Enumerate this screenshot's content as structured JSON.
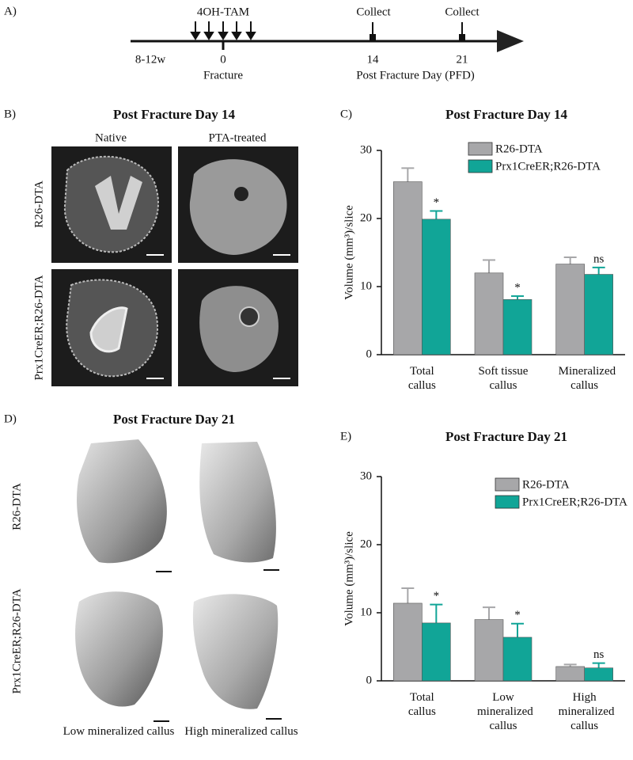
{
  "timeline": {
    "panel": "A)",
    "start": "8-12w",
    "treatment": "4OH-TAM",
    "day0": "0",
    "day0_label": "Fracture",
    "collect_1": "Collect",
    "day14": "14",
    "collect_2": "Collect",
    "day21": "21",
    "axis_label": "Post Fracture Day (PFD)"
  },
  "panel_b": {
    "panel": "B)",
    "title": "Post Fracture Day 14",
    "columns": [
      "Native",
      "PTA-treated"
    ],
    "rows": [
      "R26-DTA",
      "Prx1CreER;R26-DTA"
    ]
  },
  "panel_d": {
    "panel": "D)",
    "title": "Post Fracture Day 21",
    "rows": [
      "R26-DTA",
      "Prx1CreER;R26-DTA"
    ],
    "columns": [
      "Low mineralized callus",
      "High mineralized callus"
    ]
  },
  "chart_data": [
    {
      "type": "bar",
      "panel": "C)",
      "title": "Post Fracture Day 14",
      "ylabel": "Volume (mm³)/slice",
      "categories": [
        "Total callus",
        "Soft tissue callus",
        "Mineralized callus"
      ],
      "series": [
        {
          "name": "R26-DTA",
          "color": "#a7a7a9",
          "values": [
            25.4,
            12.0,
            13.3
          ],
          "errors": [
            2.0,
            1.9,
            1.0
          ]
        },
        {
          "name": "Prx1CreER;R26-DTA",
          "color": "#11a597",
          "values": [
            19.9,
            8.1,
            11.8
          ],
          "errors": [
            1.2,
            0.5,
            1.0
          ]
        }
      ],
      "annotations": [
        "*",
        "*",
        "ns"
      ],
      "ylim": [
        0,
        30
      ],
      "yticks": [
        0,
        10,
        20,
        30
      ]
    },
    {
      "type": "bar",
      "panel": "E)",
      "title": "Post Fracture Day 21",
      "ylabel": "Volume (mm³)/slice",
      "categories": [
        "Total callus",
        "Low mineralized callus",
        "High mineralized callus"
      ],
      "series": [
        {
          "name": "R26-DTA",
          "color": "#a7a7a9",
          "values": [
            11.4,
            9.0,
            2.1
          ],
          "errors": [
            2.2,
            1.8,
            0.3
          ]
        },
        {
          "name": "Prx1CreER;R26-DTA",
          "color": "#11a597",
          "values": [
            8.5,
            6.4,
            1.9
          ],
          "errors": [
            2.7,
            2.0,
            0.7
          ]
        }
      ],
      "annotations": [
        "*",
        "*",
        "ns"
      ],
      "ylim": [
        0,
        30
      ],
      "yticks": [
        0,
        10,
        20,
        30
      ]
    }
  ]
}
